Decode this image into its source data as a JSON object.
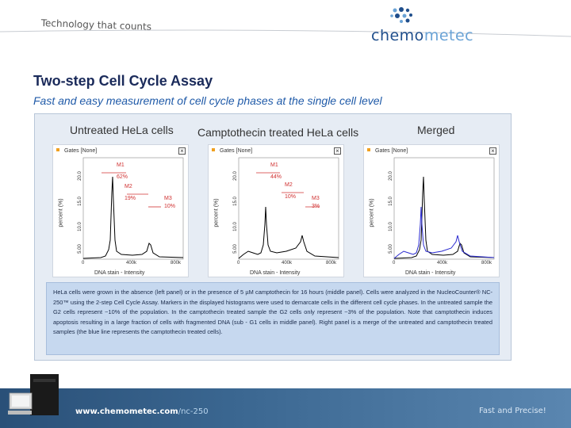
{
  "header": {
    "tagline": "Technology that counts",
    "logo_text_main": "chemo",
    "logo_text_light": "metec"
  },
  "slide": {
    "title": "Two-step Cell Cycle Assay",
    "subtitle": "Fast and easy measurement of cell cycle phases at the single cell level"
  },
  "figure": {
    "panel_titles": [
      "Untreated HeLa cells",
      "Camptothecin treated HeLa cells",
      "Merged"
    ],
    "gates_label": "Gates [None]",
    "x_axis_label": "DNA stain - Intensity",
    "y_axis_label": "percent (%)",
    "x_ticks": [
      "0",
      "400k",
      "800k"
    ],
    "y_ticks": [
      "0",
      "5.00",
      "10.0",
      "15.0",
      "20.0"
    ],
    "panels": [
      {
        "markers": [
          {
            "name": "M1",
            "pct": "62%"
          },
          {
            "name": "M2",
            "pct": "19%"
          },
          {
            "name": "M3",
            "pct": "10%"
          }
        ]
      },
      {
        "markers": [
          {
            "name": "M1",
            "pct": "44%"
          },
          {
            "name": "M2",
            "pct": "10%"
          },
          {
            "name": "M3",
            "pct": "3%"
          }
        ]
      },
      {
        "markers": []
      }
    ],
    "caption": "HeLa cells were grown in the absence (left panel) or in the presence of 5 µM camptothecin for 16 hours (middle panel). Cells were analyzed in the NucleoCounter® NC-250™ using the 2-step Cell Cycle Assay. Markers in the displayed histograms were used to demarcate cells in the different cell cycle phases. In the untreated sample the G2 cells represent ~10% of the population. In the camptothecin treated sample the G2 cells only represent ~3% of the population. Note that camptothecin induces apoptosis resulting in a large fraction of cells with fragmented DNA (sub - G1 cells in middle panel). Right panel is a merge of the untreated and camptothecin treated samples (the blue line represents the camptothecin treated cells)."
  },
  "footer": {
    "url_main": "www.chemometec.com",
    "url_suffix": "/nc-250",
    "slogan": "Fast and Precise!"
  },
  "colors": {
    "title": "#1a2a5a",
    "subtitle": "#1f5aa8",
    "marker": "#d03030",
    "untreated_line": "#000000",
    "treated_line": "#2a2ad0",
    "footer": "#2a5078"
  }
}
